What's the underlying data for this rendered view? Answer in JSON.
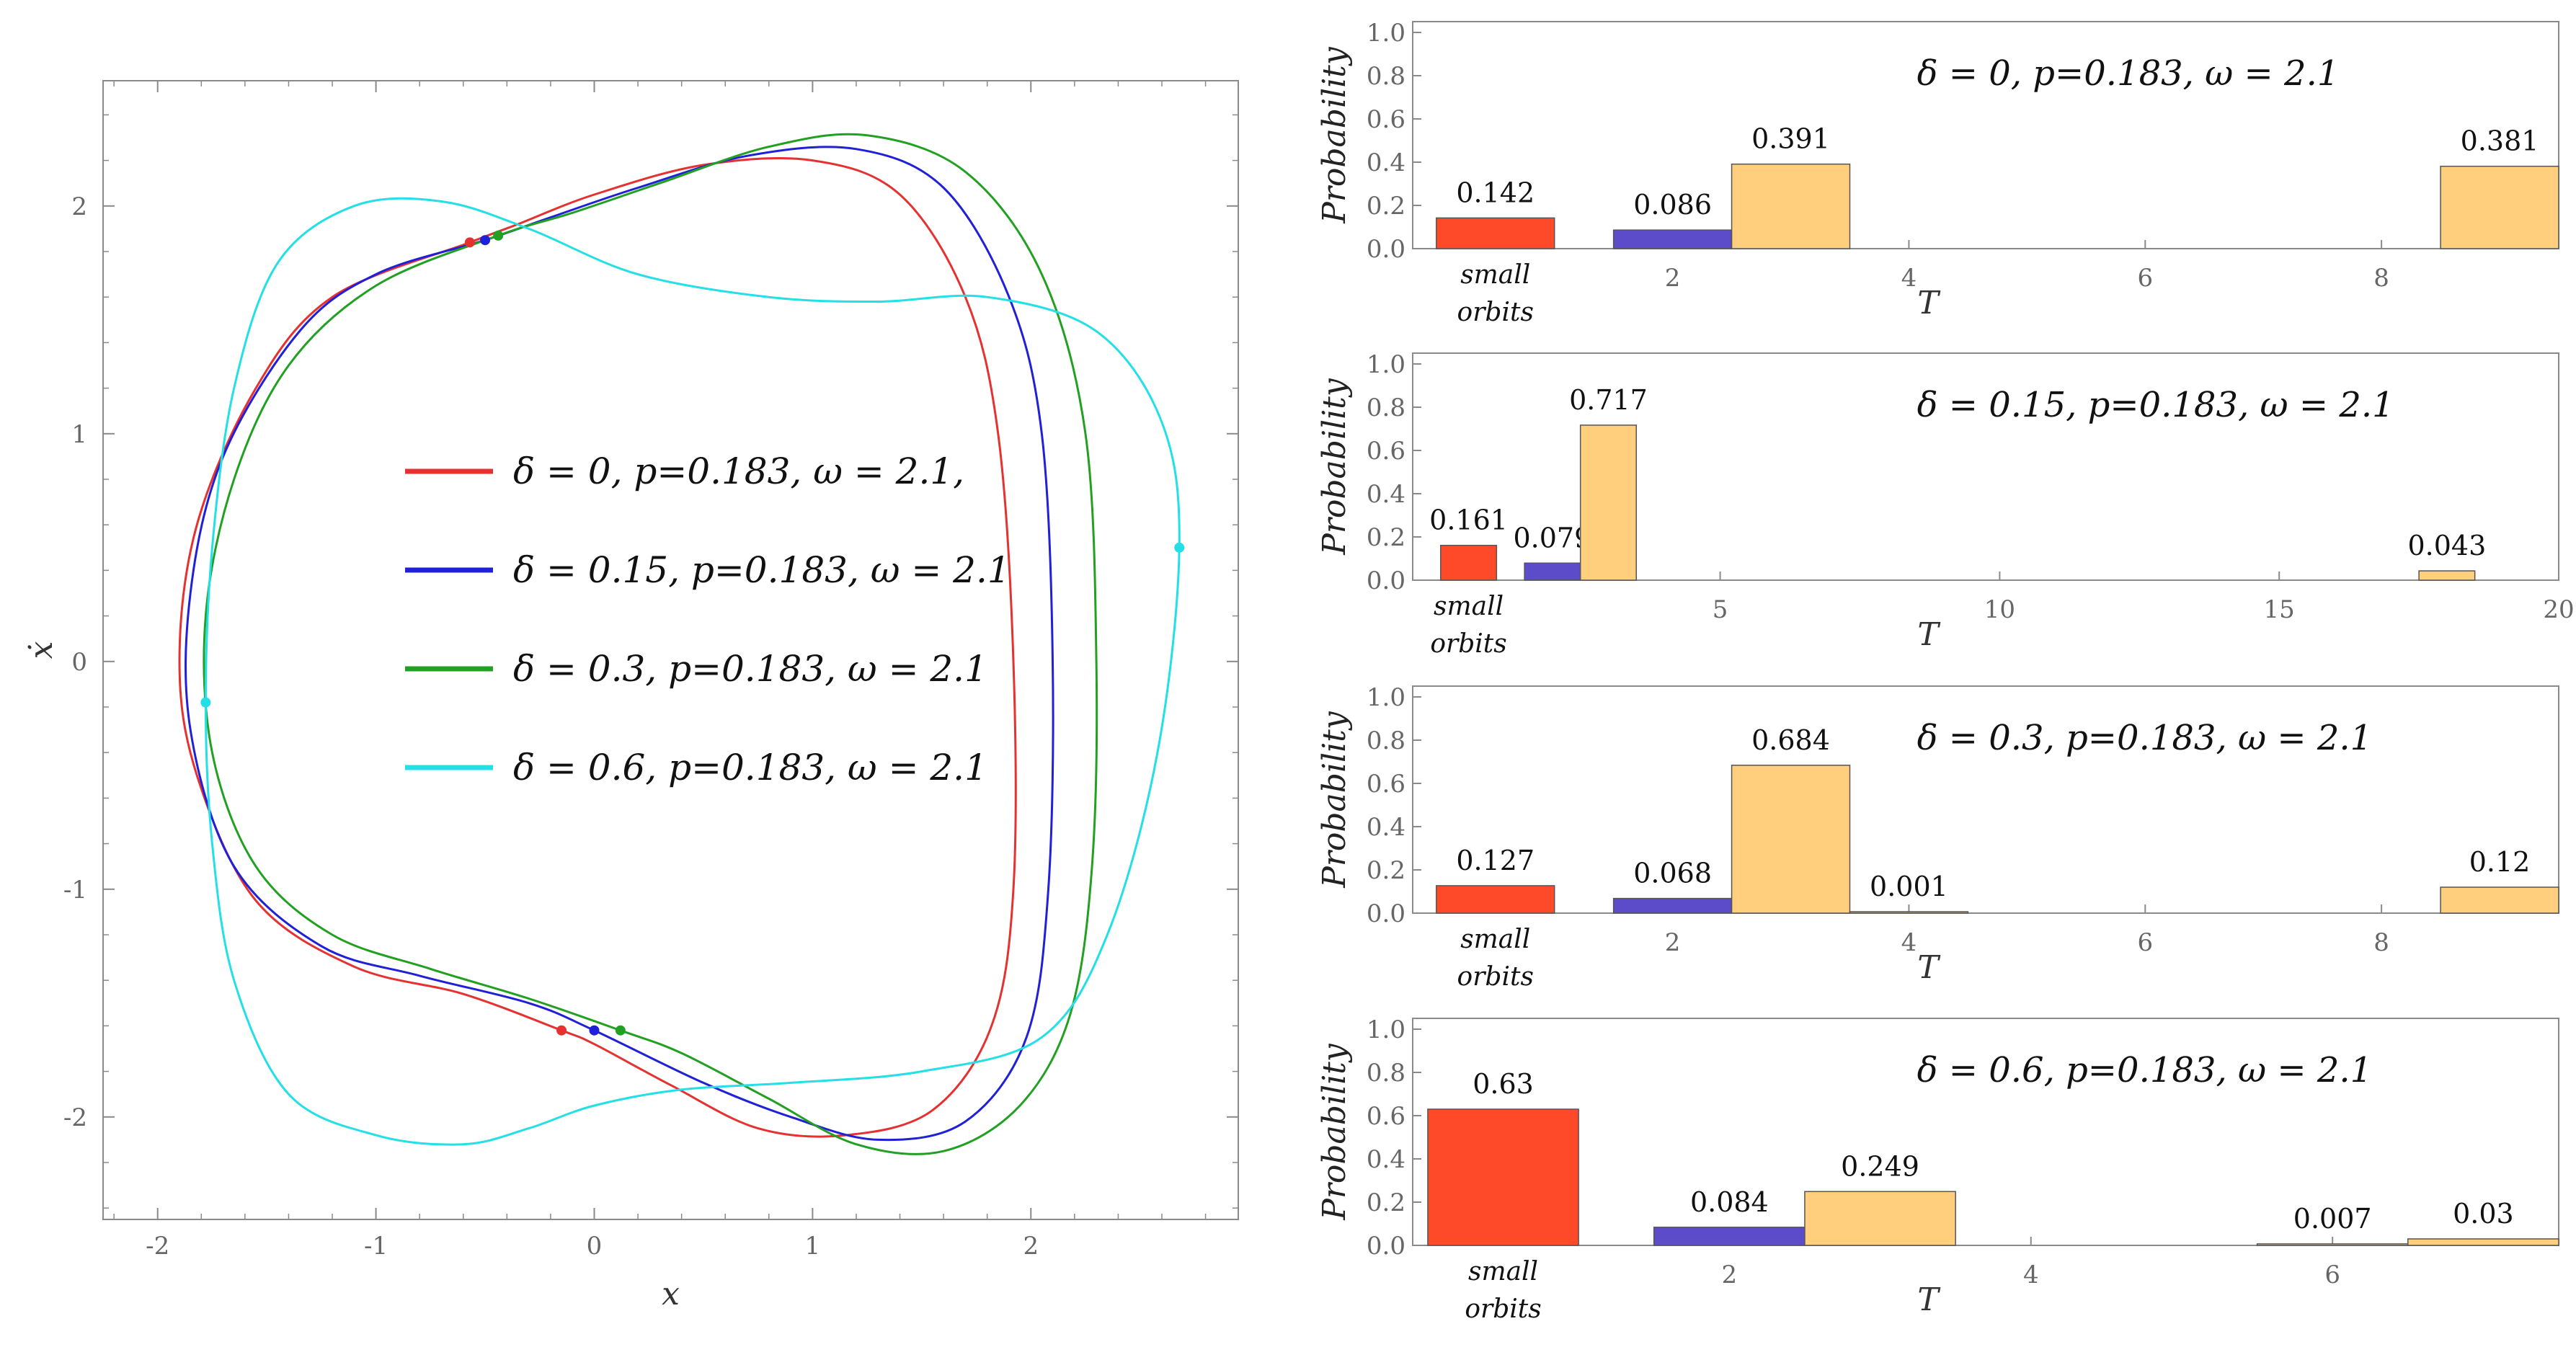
{
  "chart_data": [
    {
      "id": "phase",
      "type": "line",
      "title": "",
      "xlabel": "x",
      "ylabel": "ẋ",
      "xlim": [
        -2.25,
        2.95
      ],
      "ylim": [
        -2.45,
        2.55
      ],
      "xticks": [
        -2,
        -1,
        0,
        1,
        2
      ],
      "xtick_labels": [
        "-2",
        "-1",
        "0",
        "1",
        "2"
      ],
      "yticks": [
        -2,
        -1,
        0,
        1,
        2
      ],
      "ytick_labels": [
        "-2",
        "-1",
        "0",
        "1",
        "2"
      ],
      "legend_position": "center",
      "series": [
        {
          "name": "δ = 0, p=0.183, ω = 2.1,",
          "color": "#e63131",
          "points": [
            [
              -0.57,
              1.84
            ],
            [
              -0.35,
              1.92
            ],
            [
              0,
              2.05
            ],
            [
              0.5,
              2.18
            ],
            [
              1.0,
              2.2
            ],
            [
              1.4,
              2.05
            ],
            [
              1.7,
              1.6
            ],
            [
              1.85,
              1.0
            ],
            [
              1.92,
              0.0
            ],
            [
              1.92,
              -1.0
            ],
            [
              1.82,
              -1.6
            ],
            [
              1.55,
              -1.97
            ],
            [
              1.15,
              -2.08
            ],
            [
              0.75,
              -2.05
            ],
            [
              0.35,
              -1.86
            ],
            [
              0.0,
              -1.68
            ],
            [
              -0.15,
              -1.62
            ],
            [
              -0.6,
              -1.46
            ],
            [
              -1.1,
              -1.34
            ],
            [
              -1.55,
              -1.05
            ],
            [
              -1.82,
              -0.5
            ],
            [
              -1.9,
              0.0
            ],
            [
              -1.82,
              0.6
            ],
            [
              -1.55,
              1.2
            ],
            [
              -1.2,
              1.6
            ],
            [
              -0.57,
              1.84
            ]
          ],
          "markers": [
            [
              -0.57,
              1.84
            ],
            [
              -0.15,
              -1.62
            ]
          ]
        },
        {
          "name": "δ = 0.15, p=0.183, ω = 2.1",
          "color": "#2020d8",
          "points": [
            [
              -0.5,
              1.85
            ],
            [
              -0.2,
              1.95
            ],
            [
              0.2,
              2.08
            ],
            [
              0.7,
              2.22
            ],
            [
              1.2,
              2.25
            ],
            [
              1.6,
              2.08
            ],
            [
              1.9,
              1.6
            ],
            [
              2.05,
              1.0
            ],
            [
              2.1,
              0.0
            ],
            [
              2.08,
              -1.0
            ],
            [
              1.98,
              -1.65
            ],
            [
              1.7,
              -2.02
            ],
            [
              1.3,
              -2.1
            ],
            [
              0.9,
              -2.0
            ],
            [
              0.5,
              -1.85
            ],
            [
              0.0,
              -1.62
            ],
            [
              -0.3,
              -1.5
            ],
            [
              -0.8,
              -1.38
            ],
            [
              -1.25,
              -1.25
            ],
            [
              -1.65,
              -0.9
            ],
            [
              -1.85,
              -0.3
            ],
            [
              -1.85,
              0.3
            ],
            [
              -1.7,
              0.9
            ],
            [
              -1.35,
              1.45
            ],
            [
              -1.0,
              1.7
            ],
            [
              -0.5,
              1.85
            ]
          ],
          "markers": [
            [
              -0.5,
              1.85
            ],
            [
              0.0,
              -1.62
            ]
          ]
        },
        {
          "name": "δ = 0.3, p=0.183, ω = 2.1",
          "color": "#22a022",
          "points": [
            [
              -0.44,
              1.87
            ],
            [
              -0.1,
              1.97
            ],
            [
              0.3,
              2.1
            ],
            [
              0.8,
              2.26
            ],
            [
              1.25,
              2.31
            ],
            [
              1.7,
              2.15
            ],
            [
              2.05,
              1.7
            ],
            [
              2.25,
              1.0
            ],
            [
              2.3,
              0.0
            ],
            [
              2.28,
              -0.9
            ],
            [
              2.18,
              -1.55
            ],
            [
              1.95,
              -1.95
            ],
            [
              1.6,
              -2.15
            ],
            [
              1.2,
              -2.12
            ],
            [
              0.8,
              -1.92
            ],
            [
              0.4,
              -1.72
            ],
            [
              0.12,
              -1.62
            ],
            [
              -0.3,
              -1.48
            ],
            [
              -0.75,
              -1.35
            ],
            [
              -1.2,
              -1.2
            ],
            [
              -1.55,
              -0.9
            ],
            [
              -1.75,
              -0.4
            ],
            [
              -1.78,
              0.2
            ],
            [
              -1.65,
              0.8
            ],
            [
              -1.4,
              1.3
            ],
            [
              -1.0,
              1.65
            ],
            [
              -0.44,
              1.87
            ]
          ],
          "markers": [
            [
              -0.44,
              1.87
            ],
            [
              0.12,
              -1.62
            ]
          ]
        },
        {
          "name": "δ = 0.6, p=0.183, ω = 2.1",
          "color": "#22e0e6",
          "points": [
            [
              -1.78,
              -0.18
            ],
            [
              -1.75,
              0.5
            ],
            [
              -1.65,
              1.2
            ],
            [
              -1.45,
              1.75
            ],
            [
              -1.1,
              2.0
            ],
            [
              -0.7,
              2.02
            ],
            [
              -0.3,
              1.9
            ],
            [
              0.2,
              1.7
            ],
            [
              0.8,
              1.6
            ],
            [
              1.3,
              1.58
            ],
            [
              1.8,
              1.6
            ],
            [
              2.3,
              1.45
            ],
            [
              2.6,
              1.05
            ],
            [
              2.68,
              0.5
            ],
            [
              2.58,
              -0.4
            ],
            [
              2.35,
              -1.2
            ],
            [
              2.05,
              -1.65
            ],
            [
              1.5,
              -1.8
            ],
            [
              0.9,
              -1.85
            ],
            [
              0.4,
              -1.88
            ],
            [
              0.0,
              -1.95
            ],
            [
              -0.3,
              -2.05
            ],
            [
              -0.6,
              -2.12
            ],
            [
              -1.0,
              -2.08
            ],
            [
              -1.4,
              -1.9
            ],
            [
              -1.65,
              -1.4
            ],
            [
              -1.75,
              -0.8
            ],
            [
              -1.78,
              -0.18
            ]
          ],
          "markers": [
            [
              2.68,
              0.5
            ],
            [
              -1.78,
              -0.18
            ]
          ]
        }
      ]
    },
    {
      "id": "bars1",
      "type": "bar",
      "annotation": "δ = 0, p=0.183, ω = 2.1",
      "ylabel": "Probability",
      "xlabel": "T",
      "xlim": [
        -0.2,
        9.5
      ],
      "ylim": [
        0,
        1.05
      ],
      "yticks": [
        0,
        0.2,
        0.4,
        0.6,
        0.8,
        1.0
      ],
      "ytick_labels": [
        "0.0",
        "0.2",
        "0.4",
        "0.6",
        "0.8",
        "1.0"
      ],
      "xticks": [
        2,
        4,
        6,
        8
      ],
      "xtick_labels": [
        "2",
        "4",
        "6",
        "8"
      ],
      "first_category": [
        "small",
        "orbits"
      ],
      "bars": [
        {
          "x0": 0,
          "x1": 1,
          "value": 0.142,
          "label": "0.142",
          "color": "#ff4a2a"
        },
        {
          "x0": 1.5,
          "x1": 2.5,
          "value": 0.086,
          "label": "0.086",
          "color": "#5c4cc9"
        },
        {
          "x0": 2.5,
          "x1": 3.5,
          "value": 0.391,
          "label": "0.391",
          "color": "#ffcf7e"
        },
        {
          "x0": 8.5,
          "x1": 9.5,
          "value": 0.381,
          "label": "0.381",
          "color": "#ffcf7e"
        }
      ]
    },
    {
      "id": "bars2",
      "type": "bar",
      "annotation": "δ = 0.15, p=0.183, ω = 2.1",
      "ylabel": "Probability",
      "xlabel": "T",
      "xlim": [
        -0.5,
        20
      ],
      "ylim": [
        0,
        1.05
      ],
      "yticks": [
        0,
        0.2,
        0.4,
        0.6,
        0.8,
        1.0
      ],
      "ytick_labels": [
        "0.0",
        "0.2",
        "0.4",
        "0.6",
        "0.8",
        "1.0"
      ],
      "xticks": [
        5,
        10,
        15,
        20
      ],
      "xtick_labels": [
        "5",
        "10",
        "15",
        "20"
      ],
      "first_category": [
        "small",
        "orbits"
      ],
      "bars": [
        {
          "x0": 0,
          "x1": 1,
          "value": 0.161,
          "label": "0.161",
          "color": "#ff4a2a"
        },
        {
          "x0": 1.5,
          "x1": 2.5,
          "value": 0.079,
          "label": "0.079",
          "color": "#5c4cc9"
        },
        {
          "x0": 2.5,
          "x1": 3.5,
          "value": 0.717,
          "label": "0.717",
          "color": "#ffcf7e"
        },
        {
          "x0": 17.5,
          "x1": 18.5,
          "value": 0.043,
          "label": "0.043",
          "color": "#ffcf7e"
        }
      ]
    },
    {
      "id": "bars3",
      "type": "bar",
      "annotation": "δ = 0.3, p=0.183, ω = 2.1",
      "ylabel": "Probability",
      "xlabel": "T",
      "xlim": [
        -0.2,
        9.5
      ],
      "ylim": [
        0,
        1.05
      ],
      "yticks": [
        0,
        0.2,
        0.4,
        0.6,
        0.8,
        1.0
      ],
      "ytick_labels": [
        "0.0",
        "0.2",
        "0.4",
        "0.6",
        "0.8",
        "1.0"
      ],
      "xticks": [
        2,
        4,
        6,
        8
      ],
      "xtick_labels": [
        "2",
        "4",
        "6",
        "8"
      ],
      "first_category": [
        "small",
        "orbits"
      ],
      "bars": [
        {
          "x0": 0,
          "x1": 1,
          "value": 0.127,
          "label": "0.127",
          "color": "#ff4a2a"
        },
        {
          "x0": 1.5,
          "x1": 2.5,
          "value": 0.068,
          "label": "0.068",
          "color": "#5c4cc9"
        },
        {
          "x0": 2.5,
          "x1": 3.5,
          "value": 0.684,
          "label": "0.684",
          "color": "#ffcf7e"
        },
        {
          "x0": 3.5,
          "x1": 4.5,
          "value": 0.001,
          "label": "0.001",
          "color": "#ffcf7e"
        },
        {
          "x0": 8.5,
          "x1": 9.5,
          "value": 0.12,
          "label": "0.12",
          "color": "#ffcf7e"
        }
      ]
    },
    {
      "id": "bars4",
      "type": "bar",
      "annotation": "δ = 0.6, p=0.183, ω = 2.1",
      "ylabel": "Probability",
      "xlabel": "T",
      "xlim": [
        -0.1,
        7.5
      ],
      "ylim": [
        0,
        1.05
      ],
      "yticks": [
        0,
        0.2,
        0.4,
        0.6,
        0.8,
        1.0
      ],
      "ytick_labels": [
        "0.0",
        "0.2",
        "0.4",
        "0.6",
        "0.8",
        "1.0"
      ],
      "xticks": [
        2,
        4,
        6
      ],
      "xtick_labels": [
        "2",
        "4",
        "6"
      ],
      "first_category": [
        "small",
        "orbits"
      ],
      "bars": [
        {
          "x0": 0,
          "x1": 1,
          "value": 0.63,
          "label": "0.63",
          "color": "#ff4a2a"
        },
        {
          "x0": 1.5,
          "x1": 2.5,
          "value": 0.084,
          "label": "0.084",
          "color": "#5c4cc9"
        },
        {
          "x0": 2.5,
          "x1": 3.5,
          "value": 0.249,
          "label": "0.249",
          "color": "#ffcf7e"
        },
        {
          "x0": 5.5,
          "x1": 6.5,
          "value": 0.007,
          "label": "0.007",
          "color": "#ffcf7e"
        },
        {
          "x0": 6.5,
          "x1": 7.5,
          "value": 0.03,
          "label": "0.03",
          "color": "#ffcf7e"
        }
      ]
    }
  ]
}
